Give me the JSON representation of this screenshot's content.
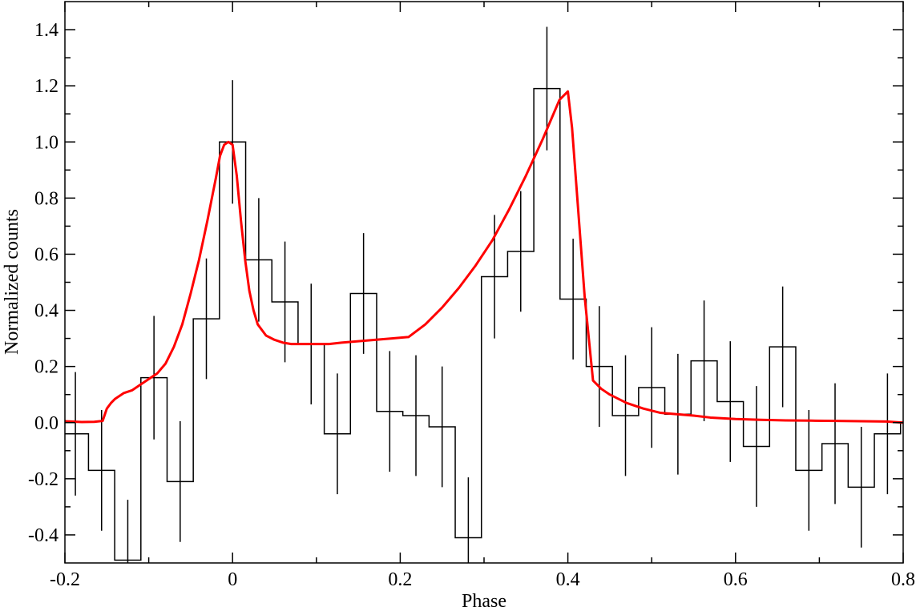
{
  "chart_data": {
    "type": "line",
    "title": "",
    "xlabel": "Phase",
    "ylabel": "Normalized counts",
    "xlim": [
      -0.2,
      0.8
    ],
    "ylim": [
      -0.5,
      1.5
    ],
    "grid": false,
    "xticks": [
      -0.2,
      0,
      0.2,
      0.4,
      0.6,
      0.8
    ],
    "xtick_labels": [
      "-0.2",
      "0",
      "0.2",
      "0.4",
      "0.6",
      "0.8"
    ],
    "yticks": [
      -0.4,
      -0.2,
      0.0,
      0.2,
      0.4,
      0.6,
      0.8,
      1.0,
      1.2,
      1.4
    ],
    "ytick_labels": [
      "-0.4",
      "-0.2",
      "0.0",
      "0.2",
      "0.4",
      "0.6",
      "0.8",
      "1.0",
      "1.2",
      "1.4"
    ],
    "series": [
      {
        "kind": "histogram",
        "color": "#000000",
        "bin_width": 0.03125,
        "x": [
          -0.1875,
          -0.15625,
          -0.125,
          -0.09375,
          -0.0625,
          -0.03125,
          0.0,
          0.03125,
          0.0625,
          0.09375,
          0.125,
          0.15625,
          0.1875,
          0.21875,
          0.25,
          0.28125,
          0.3125,
          0.34375,
          0.375,
          0.40625,
          0.4375,
          0.46875,
          0.5,
          0.53125,
          0.5625,
          0.59375,
          0.625,
          0.65625,
          0.6875,
          0.71875,
          0.75,
          0.78125,
          0.8125
        ],
        "y": [
          -0.04,
          -0.17,
          -0.49,
          0.16,
          -0.21,
          0.37,
          1.0,
          0.58,
          0.43,
          0.28,
          -0.04,
          0.46,
          0.04,
          0.025,
          -0.015,
          -0.41,
          0.52,
          0.61,
          1.19,
          0.44,
          0.2,
          0.025,
          0.125,
          0.03,
          0.22,
          0.075,
          -0.085,
          0.27,
          -0.17,
          -0.075,
          -0.23,
          -0.04,
          0.0
        ],
        "err": [
          0.22,
          0.215,
          0.215,
          0.22,
          0.215,
          0.215,
          0.22,
          0.22,
          0.215,
          0.215,
          0.215,
          0.215,
          0.215,
          0.215,
          0.215,
          0.215,
          0.22,
          0.215,
          0.22,
          0.215,
          0.215,
          0.215,
          0.215,
          0.215,
          0.215,
          0.215,
          0.215,
          0.215,
          0.215,
          0.215,
          0.215,
          0.215,
          0.215
        ]
      },
      {
        "kind": "line",
        "color": "#ff0000",
        "x": [
          -0.2,
          -0.18,
          -0.165,
          -0.155,
          -0.15,
          -0.145,
          -0.14,
          -0.13,
          -0.12,
          -0.11,
          -0.1,
          -0.09,
          -0.08,
          -0.07,
          -0.06,
          -0.05,
          -0.04,
          -0.03,
          -0.02,
          -0.015,
          -0.01,
          -0.005,
          0.0,
          0.005,
          0.01,
          0.015,
          0.02,
          0.025,
          0.03,
          0.035,
          0.04,
          0.05,
          0.06,
          0.07,
          0.08,
          0.1,
          0.115,
          0.13,
          0.15,
          0.17,
          0.19,
          0.21,
          0.23,
          0.25,
          0.27,
          0.29,
          0.31,
          0.33,
          0.35,
          0.37,
          0.39,
          0.4,
          0.405,
          0.41,
          0.415,
          0.42,
          0.425,
          0.43,
          0.44,
          0.45,
          0.47,
          0.49,
          0.51,
          0.53,
          0.55,
          0.57,
          0.6,
          0.63,
          0.66,
          0.69,
          0.72,
          0.75,
          0.78,
          0.8
        ],
        "y": [
          0.005,
          0.002,
          0.003,
          0.006,
          0.05,
          0.07,
          0.085,
          0.105,
          0.115,
          0.135,
          0.155,
          0.175,
          0.21,
          0.27,
          0.35,
          0.46,
          0.58,
          0.72,
          0.87,
          0.95,
          0.99,
          1.0,
          0.99,
          0.88,
          0.72,
          0.58,
          0.47,
          0.4,
          0.35,
          0.33,
          0.31,
          0.295,
          0.285,
          0.28,
          0.28,
          0.28,
          0.28,
          0.285,
          0.29,
          0.295,
          0.3,
          0.305,
          0.35,
          0.41,
          0.48,
          0.56,
          0.65,
          0.76,
          0.88,
          1.01,
          1.15,
          1.18,
          1.05,
          0.85,
          0.65,
          0.45,
          0.3,
          0.15,
          0.12,
          0.1,
          0.07,
          0.05,
          0.035,
          0.03,
          0.025,
          0.018,
          0.013,
          0.01,
          0.008,
          0.007,
          0.006,
          0.005,
          0.004,
          0.0
        ]
      }
    ]
  }
}
